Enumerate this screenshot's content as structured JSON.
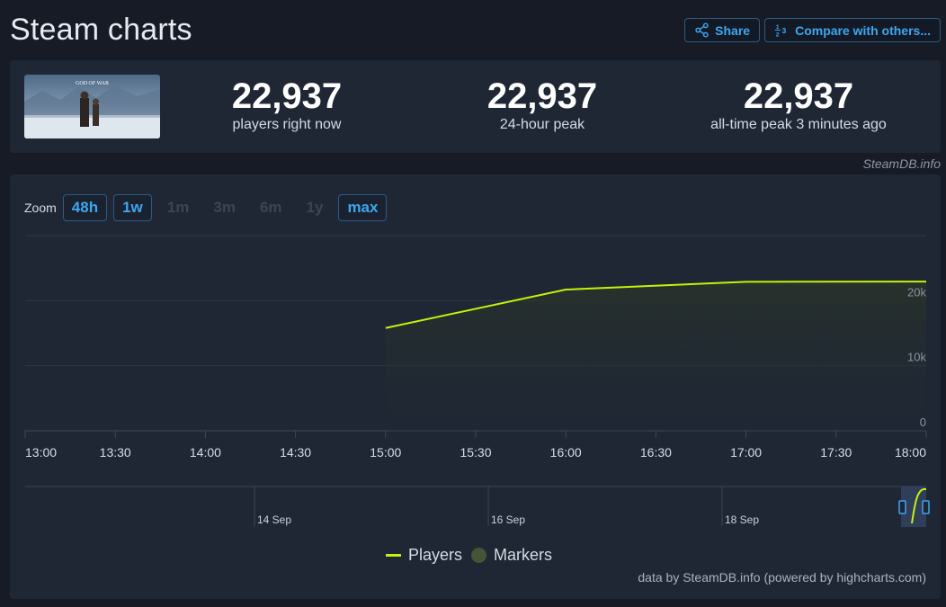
{
  "page": {
    "title": "Steam charts",
    "share_label": "Share",
    "compare_label": "Compare with others...",
    "credit_top": "SteamDB.info",
    "credit_bottom": "data by SteamDB.info (powered by highcharts.com)"
  },
  "game_image": {
    "logo_text": "GOD OF WAR"
  },
  "stats": [
    {
      "value": "22,937",
      "label": "players right now"
    },
    {
      "value": "22,937",
      "label": "24-hour peak"
    },
    {
      "value": "22,937",
      "label": "all-time peak 3 minutes ago"
    }
  ],
  "zoom": {
    "label": "Zoom",
    "options": [
      {
        "label": "48h",
        "active": true
      },
      {
        "label": "1w",
        "active": true
      },
      {
        "label": "1m",
        "active": false
      },
      {
        "label": "3m",
        "active": false
      },
      {
        "label": "6m",
        "active": false
      },
      {
        "label": "1y",
        "active": false
      },
      {
        "label": "max",
        "active": true
      }
    ]
  },
  "legend": {
    "players": "Players",
    "markers": "Markers"
  },
  "colors": {
    "series": "#c5f10c",
    "accent": "#3ea6f0",
    "panel": "#1f2735",
    "background": "#161b25"
  },
  "chart_data": {
    "type": "line",
    "series": [
      {
        "name": "Players",
        "x": [
          "15:00",
          "16:00",
          "17:00",
          "18:00"
        ],
        "values": [
          15800,
          21700,
          22900,
          22937
        ]
      }
    ],
    "x_ticks": [
      "13:00",
      "13:30",
      "14:00",
      "14:30",
      "15:00",
      "15:30",
      "16:00",
      "16:30",
      "17:00",
      "17:30",
      "18:00"
    ],
    "y_ticks": [
      "0",
      "10k",
      "20k"
    ],
    "ylim": [
      0,
      30000
    ],
    "xlim": [
      "13:00",
      "18:00"
    ],
    "grid": true,
    "legend_position": "bottom-center",
    "navigator_labels": [
      "14 Sep",
      "16 Sep",
      "18 Sep"
    ]
  }
}
